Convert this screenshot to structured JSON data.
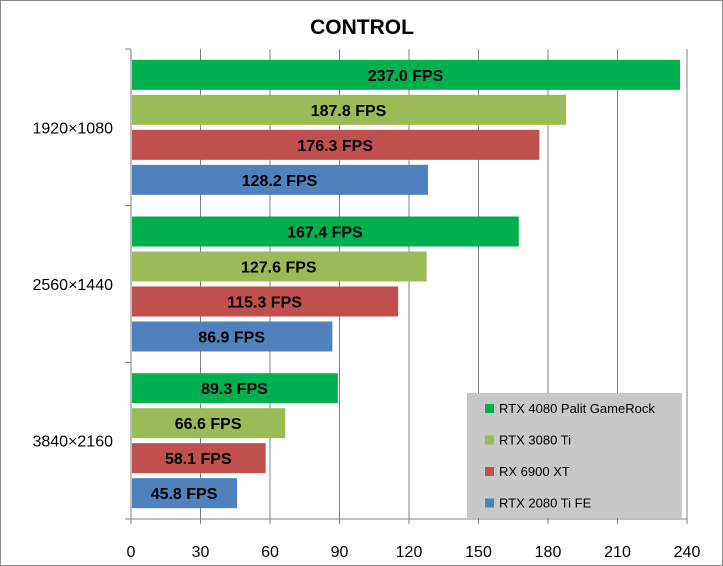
{
  "chart_data": {
    "type": "bar",
    "orientation": "horizontal",
    "title": "CONTROL",
    "categories": [
      "1920×1080",
      "2560×1440",
      "3840×2160"
    ],
    "series": [
      {
        "name": "RTX 4080 Palit GameRock",
        "color": "#00b050",
        "values": [
          237.0,
          167.4,
          89.3
        ],
        "labels": [
          "237.0 FPS",
          "167.4 FPS",
          "89.3 FPS"
        ]
      },
      {
        "name": "RTX 3080 Ti",
        "color": "#9bbb59",
        "values": [
          187.8,
          127.6,
          66.6
        ],
        "labels": [
          "187.8 FPS",
          "127.6 FPS",
          "66.6 FPS"
        ]
      },
      {
        "name": "RX 6900 XT",
        "color": "#c0504d",
        "values": [
          176.3,
          115.3,
          58.1
        ],
        "labels": [
          "176.3 FPS",
          "115.3 FPS",
          "58.1 FPS"
        ]
      },
      {
        "name": "RTX 2080 Ti FE",
        "color": "#4f81bd",
        "values": [
          128.2,
          86.9,
          45.8
        ],
        "labels": [
          "128.2 FPS",
          "86.9 FPS",
          "45.8 FPS"
        ]
      }
    ],
    "xlim": [
      0,
      240
    ],
    "xticks": [
      "0",
      "30",
      "60",
      "90",
      "120",
      "150",
      "180",
      "210",
      "240"
    ],
    "grid": true,
    "legend": "bottom-right"
  }
}
